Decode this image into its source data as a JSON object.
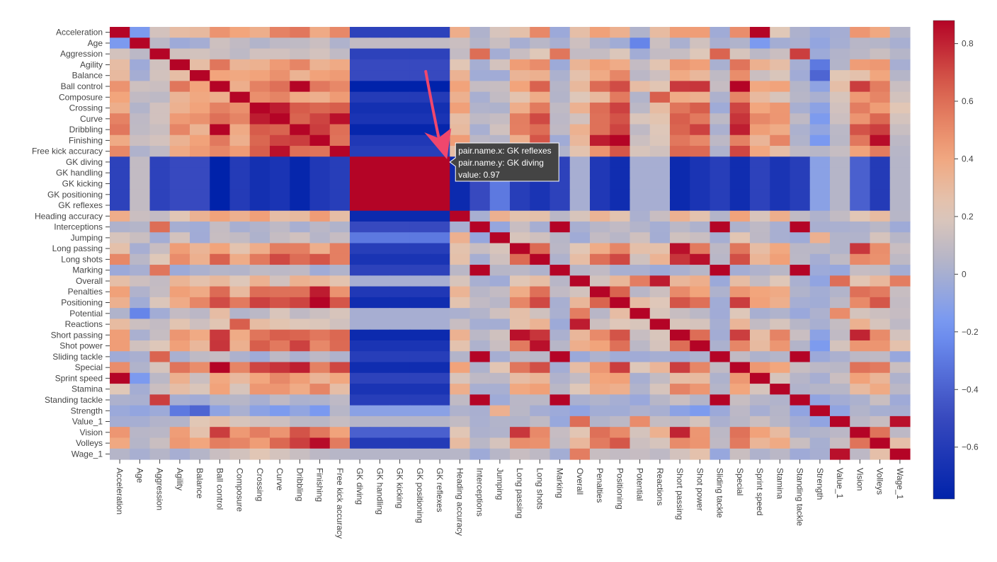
{
  "chart_data": {
    "type": "heatmap",
    "labels": [
      "Acceleration",
      "Age",
      "Aggression",
      "Agility",
      "Balance",
      "Ball control",
      "Composure",
      "Crossing",
      "Curve",
      "Dribbling",
      "Finishing",
      "Free kick accuracy",
      "GK diving",
      "GK handling",
      "GK kicking",
      "GK positioning",
      "GK reflexes",
      "Heading accuracy",
      "Interceptions",
      "Jumping",
      "Long passing",
      "Long shots",
      "Marking",
      "Overall",
      "Penalties",
      "Positioning",
      "Potential",
      "Reactions",
      "Short passing",
      "Shot power",
      "Sliding tackle",
      "Special",
      "Sprint speed",
      "Stamina",
      "Standing tackle",
      "Strength",
      "Value_1",
      "Vision",
      "Volleys",
      "Wage_1"
    ],
    "colorscale": [
      [
        0.0,
        "#0022aa"
      ],
      [
        0.18,
        "#3b4cc0"
      ],
      [
        0.36,
        "#7396f5"
      ],
      [
        0.5,
        "#b5b5c8"
      ],
      [
        0.6,
        "#e0c8b8"
      ],
      [
        0.72,
        "#f2a57c"
      ],
      [
        0.86,
        "#d8604d"
      ],
      [
        1.0,
        "#b40426"
      ]
    ],
    "zmin": -0.78,
    "zmax": 0.88,
    "colorbar_ticks": [
      0.8,
      0.6,
      0.4,
      0.2,
      0,
      -0.2,
      -0.4,
      -0.6
    ],
    "colorbar_tick_labels": [
      "0.8",
      "0.6",
      "0.4",
      "0.2",
      "0",
      "−0.2",
      "−0.4",
      "−0.6"
    ],
    "tooltip": {
      "x": "GK reflexes",
      "y": "GK diving",
      "line1": "pair.name.x: GK reflexes",
      "line2": "pair.name.y: GK diving",
      "line3": "value: 0.97"
    },
    "arrow_color": "#f0476d"
  }
}
